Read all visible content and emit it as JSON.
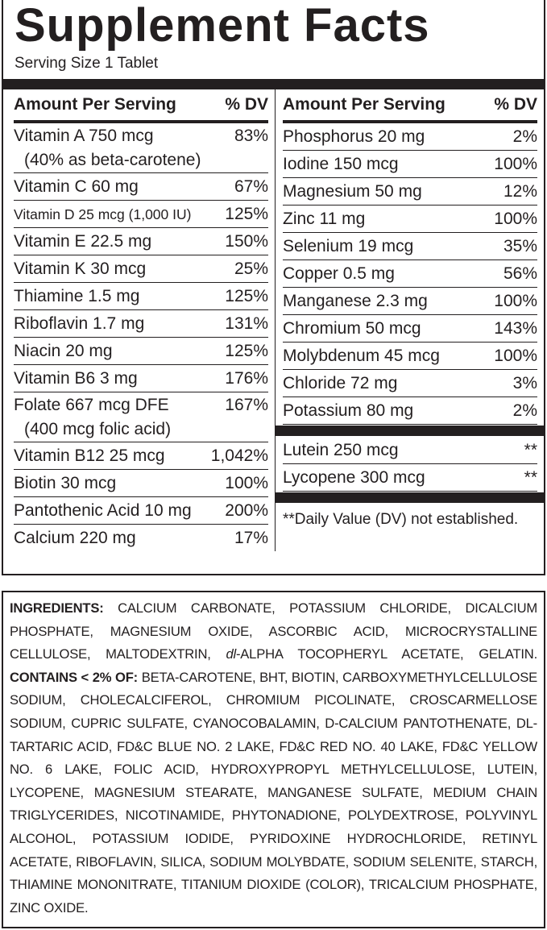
{
  "title": "Supplement Facts",
  "serving_size": "Serving Size 1 Tablet",
  "left": {
    "header": {
      "amount": "Amount Per Serving",
      "dv": "% DV"
    },
    "rows": [
      {
        "nutrient": "Vitamin A 750 mcg",
        "sub": "(40% as beta-carotene)",
        "dv": "83%"
      },
      {
        "nutrient": "Vitamin C 60 mg",
        "dv": "67%"
      },
      {
        "nutrient": "Vitamin D 25 mcg (1,000 IU)",
        "dv": "125%"
      },
      {
        "nutrient": "Vitamin E 22.5 mg",
        "dv": "150%"
      },
      {
        "nutrient": "Vitamin K 30 mcg",
        "dv": "25%"
      },
      {
        "nutrient": "Thiamine 1.5 mg",
        "dv": "125%"
      },
      {
        "nutrient": "Riboflavin 1.7 mg",
        "dv": "131%"
      },
      {
        "nutrient": "Niacin 20 mg",
        "dv": "125%"
      },
      {
        "nutrient": "Vitamin B6 3 mg",
        "dv": "176%"
      },
      {
        "nutrient": "Folate 667 mcg DFE",
        "sub": "(400 mcg folic acid)",
        "dv": "167%"
      },
      {
        "nutrient": "Vitamin B12 25 mcg",
        "dv": "1,042%"
      },
      {
        "nutrient": "Biotin 30 mcg",
        "dv": "100%"
      },
      {
        "nutrient": "Pantothenic Acid 10 mg",
        "dv": "200%"
      },
      {
        "nutrient": "Calcium 220 mg",
        "dv": "17%"
      }
    ]
  },
  "right": {
    "header": {
      "amount": "Amount Per Serving",
      "dv": "% DV"
    },
    "rows": [
      {
        "nutrient": "Phosphorus 20 mg",
        "dv": "2%"
      },
      {
        "nutrient": "Iodine 150 mcg",
        "dv": "100%"
      },
      {
        "nutrient": "Magnesium 50 mg",
        "dv": "12%"
      },
      {
        "nutrient": "Zinc 11 mg",
        "dv": "100%"
      },
      {
        "nutrient": "Selenium 19 mcg",
        "dv": "35%"
      },
      {
        "nutrient": "Copper 0.5 mg",
        "dv": "56%"
      },
      {
        "nutrient": "Manganese 2.3 mg",
        "dv": "100%"
      },
      {
        "nutrient": "Chromium 50 mcg",
        "dv": "143%"
      },
      {
        "nutrient": "Molybdenum 45 mcg",
        "dv": "100%"
      },
      {
        "nutrient": "Chloride 72 mg",
        "dv": "3%"
      },
      {
        "nutrient": "Potassium 80 mg",
        "dv": "2%"
      }
    ],
    "other_rows": [
      {
        "nutrient": "Lutein 250 mcg",
        "dv": "**"
      },
      {
        "nutrient": "Lycopene 300 mcg",
        "dv": "**"
      }
    ],
    "footnote": "**Daily Value (DV) not established."
  },
  "ingredients": {
    "label": "INGREDIENTS:",
    "text_a": "CALCIUM CARBONATE, POTASSIUM CHLORIDE, DICALCIUM PHOSPHATE, MAGNESIUM OXIDE, ASCORBIC ACID, MICROCRYSTALLINE CELLULOSE, MALTODEXTRIN,",
    "text_italic": "dl",
    "text_b": "-ALPHA TOCOPHERYL ACETATE, GELATIN.",
    "contains_label": "CONTAINS < 2% OF:",
    "contains_text": "BETA-CAROTENE, BHT, BIOTIN, CARBOXYMETHYLCELLULOSE SODIUM, CHOLECALCIFEROL, CHROMIUM PICOLINATE, CROSCARMELLOSE SODIUM, CUPRIC SULFATE, CYANOCOBALAMIN, D-CALCIUM PANTOTHENATE, DL-TARTARIC ACID, FD&C BLUE NO. 2 LAKE, FD&C RED NO. 40 LAKE, FD&C YELLOW NO. 6 LAKE, FOLIC ACID, HYDROXYPROPYL METHYLCELLULOSE, LUTEIN, LYCOPENE, MAGNESIUM STEARATE, MANGANESE SULFATE, MEDIUM CHAIN TRIGLYCERIDES, NICOTINAMIDE, PHYTONADIONE, POLYDEXTROSE, POLYVINYL ALCOHOL, POTASSIUM IODIDE, PYRIDOXINE HYDROCHLORIDE, RETINYL ACETATE, RIBOFLAVIN, SILICA, SODIUM MOLYBDATE, SODIUM SELENITE, STARCH, THIAMINE MONONITRATE, TITANIUM DIOXIDE (COLOR), TRICALCIUM PHOSPHATE, ZINC OXIDE."
  }
}
